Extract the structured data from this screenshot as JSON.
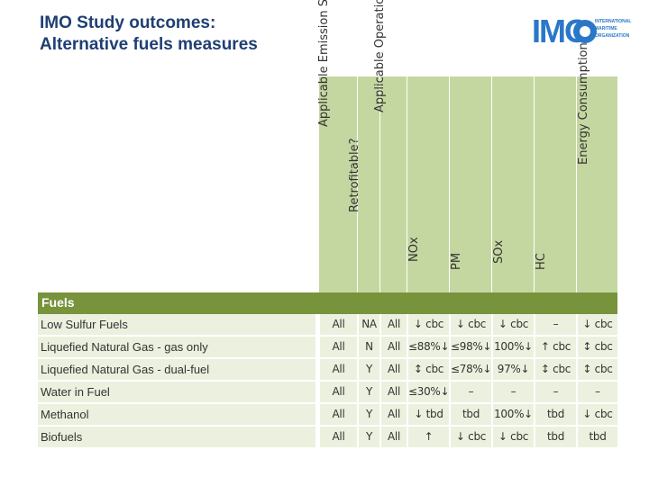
{
  "header": {
    "title_line1": "IMO Study outcomes:",
    "title_line2": "Alternative fuels measures",
    "logo_letters": "IMO",
    "logo_org_line1": "INTERNATIONAL",
    "logo_org_line2": "MARITIME",
    "logo_org_line3": "ORGANIZATION"
  },
  "table": {
    "columns": [
      "Applicable Emission Source",
      "Retrofitable?",
      "Applicable Operational Modes",
      "NOx",
      "PM",
      "SOx",
      "HC",
      "Energy Consumption"
    ],
    "section_label": "Fuels",
    "rows": [
      {
        "name": "Low Sulfur Fuels",
        "cells": [
          "All",
          "NA",
          "All",
          "↓ cbc",
          "↓ cbc",
          "↓ cbc",
          "–",
          "↓ cbc"
        ]
      },
      {
        "name": "Liquefied Natural Gas - gas only",
        "cells": [
          "All",
          "N",
          "All",
          "≤88%↓",
          "≤98%↓",
          "100%↓",
          "↑ cbc",
          "↕ cbc"
        ]
      },
      {
        "name": "Liquefied Natural Gas - dual-fuel",
        "cells": [
          "All",
          "Y",
          "All",
          "↕ cbc",
          "≤78%↓",
          "97%↓",
          "↕ cbc",
          "↕ cbc"
        ]
      },
      {
        "name": "Water in Fuel",
        "cells": [
          "All",
          "Y",
          "All",
          "≤30%↓",
          "–",
          "–",
          "–",
          "–"
        ]
      },
      {
        "name": "Methanol",
        "cells": [
          "All",
          "Y",
          "All",
          "↓ tbd",
          "tbd",
          "100%↓",
          "tbd",
          "↓ cbc"
        ]
      },
      {
        "name": "Biofuels",
        "cells": [
          "All",
          "Y",
          "All",
          "↑",
          "↓ cbc",
          "↓ cbc",
          "tbd",
          "tbd"
        ]
      }
    ]
  }
}
